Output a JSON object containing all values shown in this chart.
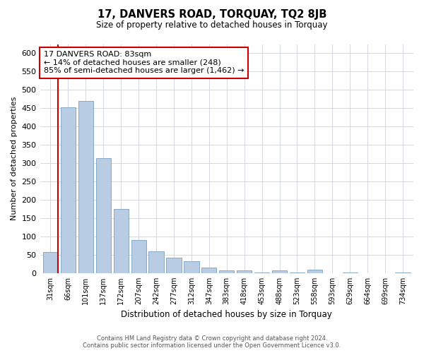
{
  "title": "17, DANVERS ROAD, TORQUAY, TQ2 8JB",
  "subtitle": "Size of property relative to detached houses in Torquay",
  "xlabel": "Distribution of detached houses by size in Torquay",
  "ylabel": "Number of detached properties",
  "bar_labels": [
    "31sqm",
    "66sqm",
    "101sqm",
    "137sqm",
    "172sqm",
    "207sqm",
    "242sqm",
    "277sqm",
    "312sqm",
    "347sqm",
    "383sqm",
    "418sqm",
    "453sqm",
    "488sqm",
    "523sqm",
    "558sqm",
    "593sqm",
    "629sqm",
    "664sqm",
    "699sqm",
    "734sqm"
  ],
  "bar_values": [
    57,
    452,
    470,
    313,
    175,
    90,
    60,
    42,
    32,
    16,
    7,
    8,
    2,
    8,
    2,
    9,
    0,
    2,
    0,
    0,
    2
  ],
  "bar_color": "#b8cce4",
  "bar_edge_color": "#7a9fc0",
  "highlight_color": "#cc0000",
  "annotation_line1": "17 DANVERS ROAD: 83sqm",
  "annotation_line2": "← 14% of detached houses are smaller (248)",
  "annotation_line3": "85% of semi-detached houses are larger (1,462) →",
  "annotation_box_color": "#ffffff",
  "annotation_box_edgecolor": "#cc0000",
  "ylim": [
    0,
    625
  ],
  "yticks": [
    0,
    50,
    100,
    150,
    200,
    250,
    300,
    350,
    400,
    450,
    500,
    550,
    600
  ],
  "footer_line1": "Contains HM Land Registry data © Crown copyright and database right 2024.",
  "footer_line2": "Contains public sector information licensed under the Open Government Licence v3.0.",
  "bg_color": "#ffffff",
  "grid_color": "#cdd5e0"
}
